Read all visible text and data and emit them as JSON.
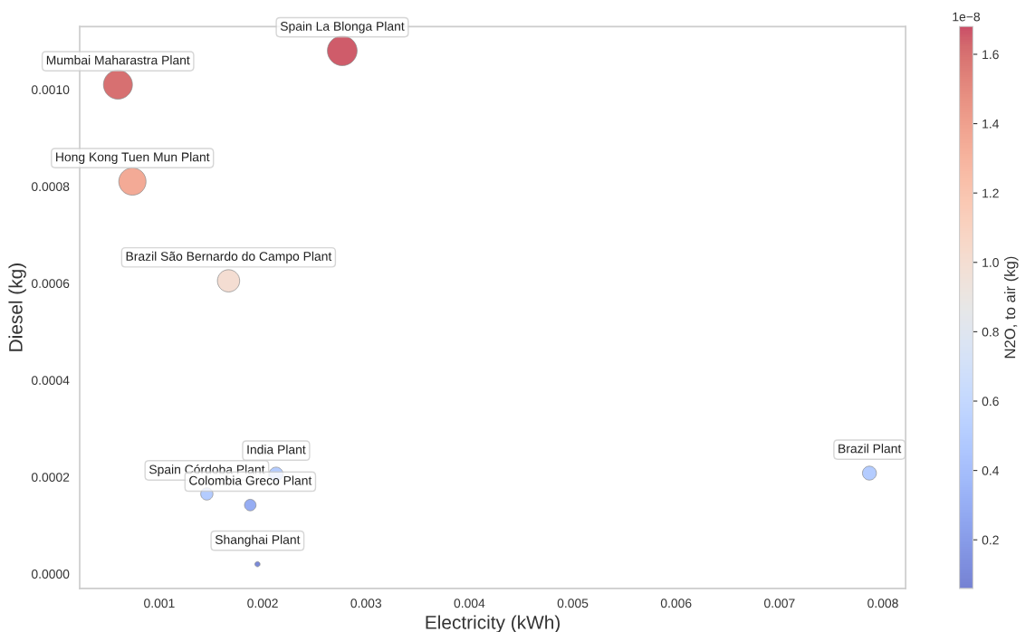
{
  "chart_data": {
    "type": "bubble",
    "xlabel": "Electricity (kWh)",
    "ylabel": "Diesel (kg)",
    "clabel": "N2O, to air (kg)",
    "x": [
      0.00277,
      0.0006,
      0.00074,
      0.00167,
      0.00213,
      0.00146,
      0.00188,
      0.00195,
      0.00787
    ],
    "values": [
      0.00108,
      0.00101,
      0.00081,
      0.000605,
      0.000206,
      0.000165,
      0.000142,
      2e-05,
      0.000208
    ],
    "sizes": [
      1,
      0.95,
      0.84,
      0.56,
      0.22,
      0.17,
      0.15,
      0.03,
      0.22
    ],
    "cvalues": [
      1.65,
      1.6,
      1.35,
      1.0,
      0.5,
      0.5,
      0.3,
      0.1,
      0.5
    ],
    "clim": [
      0.06,
      1.68
    ],
    "cticks": [
      0.2,
      0.4,
      0.6,
      0.8,
      {
        "value": 1.0,
        "label": "1.0"
      },
      1.2,
      1.4,
      1.6
    ],
    "xlim": [
      0.00023,
      0.00822
    ],
    "xticks": [
      {
        "value": 0.001,
        "label": "0.001"
      },
      {
        "value": 0.002,
        "label": "0.002"
      },
      {
        "value": 0.003,
        "label": "0.003"
      },
      {
        "value": 0.004,
        "label": "0.004"
      },
      {
        "value": 0.005,
        "label": "0.005"
      },
      {
        "value": 0.006,
        "label": "0.006"
      },
      {
        "value": 0.007,
        "label": "0.007"
      },
      {
        "value": 0.008,
        "label": "0.008"
      }
    ],
    "ylim": [
      -3e-05,
      0.00113
    ],
    "yticks": [
      {
        "value": 0,
        "label": "0.0000"
      },
      {
        "value": 0.0002,
        "label": "0.0002"
      },
      {
        "value": 0.0004,
        "label": "0.0004"
      },
      {
        "value": 0.0006,
        "label": "0.0006"
      },
      {
        "value": 0.0008,
        "label": "0.0008"
      },
      {
        "value": 0.001,
        "label": "0.0010"
      }
    ],
    "grid": false,
    "annotations": [
      {
        "text": "Spain La Blonga Plant",
        "x": 0.00277,
        "y": 0.00108
      },
      {
        "text": "Mumbai Maharastra Plant",
        "x": 0.0006,
        "y": 0.00101
      },
      {
        "text": "Hong Kong Tuen Mun Plant",
        "x": 0.00074,
        "y": 0.00081
      },
      {
        "text": "Brazil São Bernardo do Campo Plant",
        "x": 0.00167,
        "y": 0.000605
      },
      {
        "text": "India Plant",
        "x": 0.00213,
        "y": 0.000206
      },
      {
        "text": "Spain Córdoba Plant",
        "x": 0.00146,
        "y": 0.000165
      },
      {
        "text": "Colombia Greco Plant",
        "x": 0.00188,
        "y": 0.000142
      },
      {
        "text": "Shanghai Plant",
        "x": 0.00195,
        "y": 2e-05
      },
      {
        "text": "Brazil Plant",
        "x": 0.00787,
        "y": 0.000208
      },
      "1e−8"
    ]
  }
}
